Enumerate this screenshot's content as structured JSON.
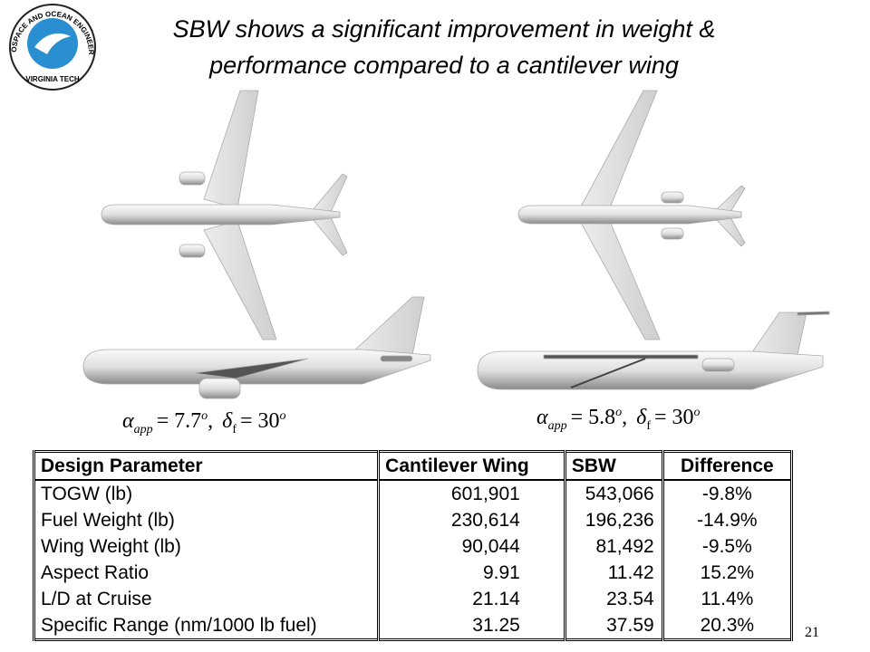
{
  "logo": {
    "ring_text": "AEROSPACE AND OCEAN ENGINEERING",
    "bottom_text": "VIRGINIA TECH"
  },
  "header": {
    "title_line1": "SBW shows a significant improvement in weight &",
    "title_line2": "performance compared to a cantilever wing"
  },
  "formulas": [
    {
      "alpha": "α",
      "alpha_sub": "app",
      "alpha_eq": "= 7.7",
      "alpha_sup": "o",
      "sep": ",",
      "delta": "δ",
      "delta_sub": "f",
      "delta_eq": "= 30",
      "delta_sup": "o"
    },
    {
      "alpha": "α",
      "alpha_sub": "app",
      "alpha_eq": "= 5.8",
      "alpha_sup": "o",
      "sep": ",",
      "delta": "δ",
      "delta_sub": "f",
      "delta_eq": "= 30",
      "delta_sup": "o"
    }
  ],
  "table": {
    "header": [
      "Design Parameter",
      "Cantilever Wing",
      "SBW",
      "Difference"
    ],
    "rows": [
      [
        "TOGW (lb)",
        "601,901",
        "543,066",
        "-9.8%"
      ],
      [
        "Fuel Weight (lb)",
        "230,614",
        "196,236",
        "-14.9%"
      ],
      [
        "Wing Weight (lb)",
        "90,044",
        "81,492",
        "-9.5%"
      ],
      [
        "Aspect Ratio",
        "9.91",
        "11.42",
        "15.2%"
      ],
      [
        "L/D at Cruise",
        "21.14",
        "23.54",
        "11.4%"
      ],
      [
        "Specific Range (nm/1000 lb fuel)",
        "31.25",
        "37.59",
        "20.3%"
      ]
    ]
  },
  "page_number": "21"
}
